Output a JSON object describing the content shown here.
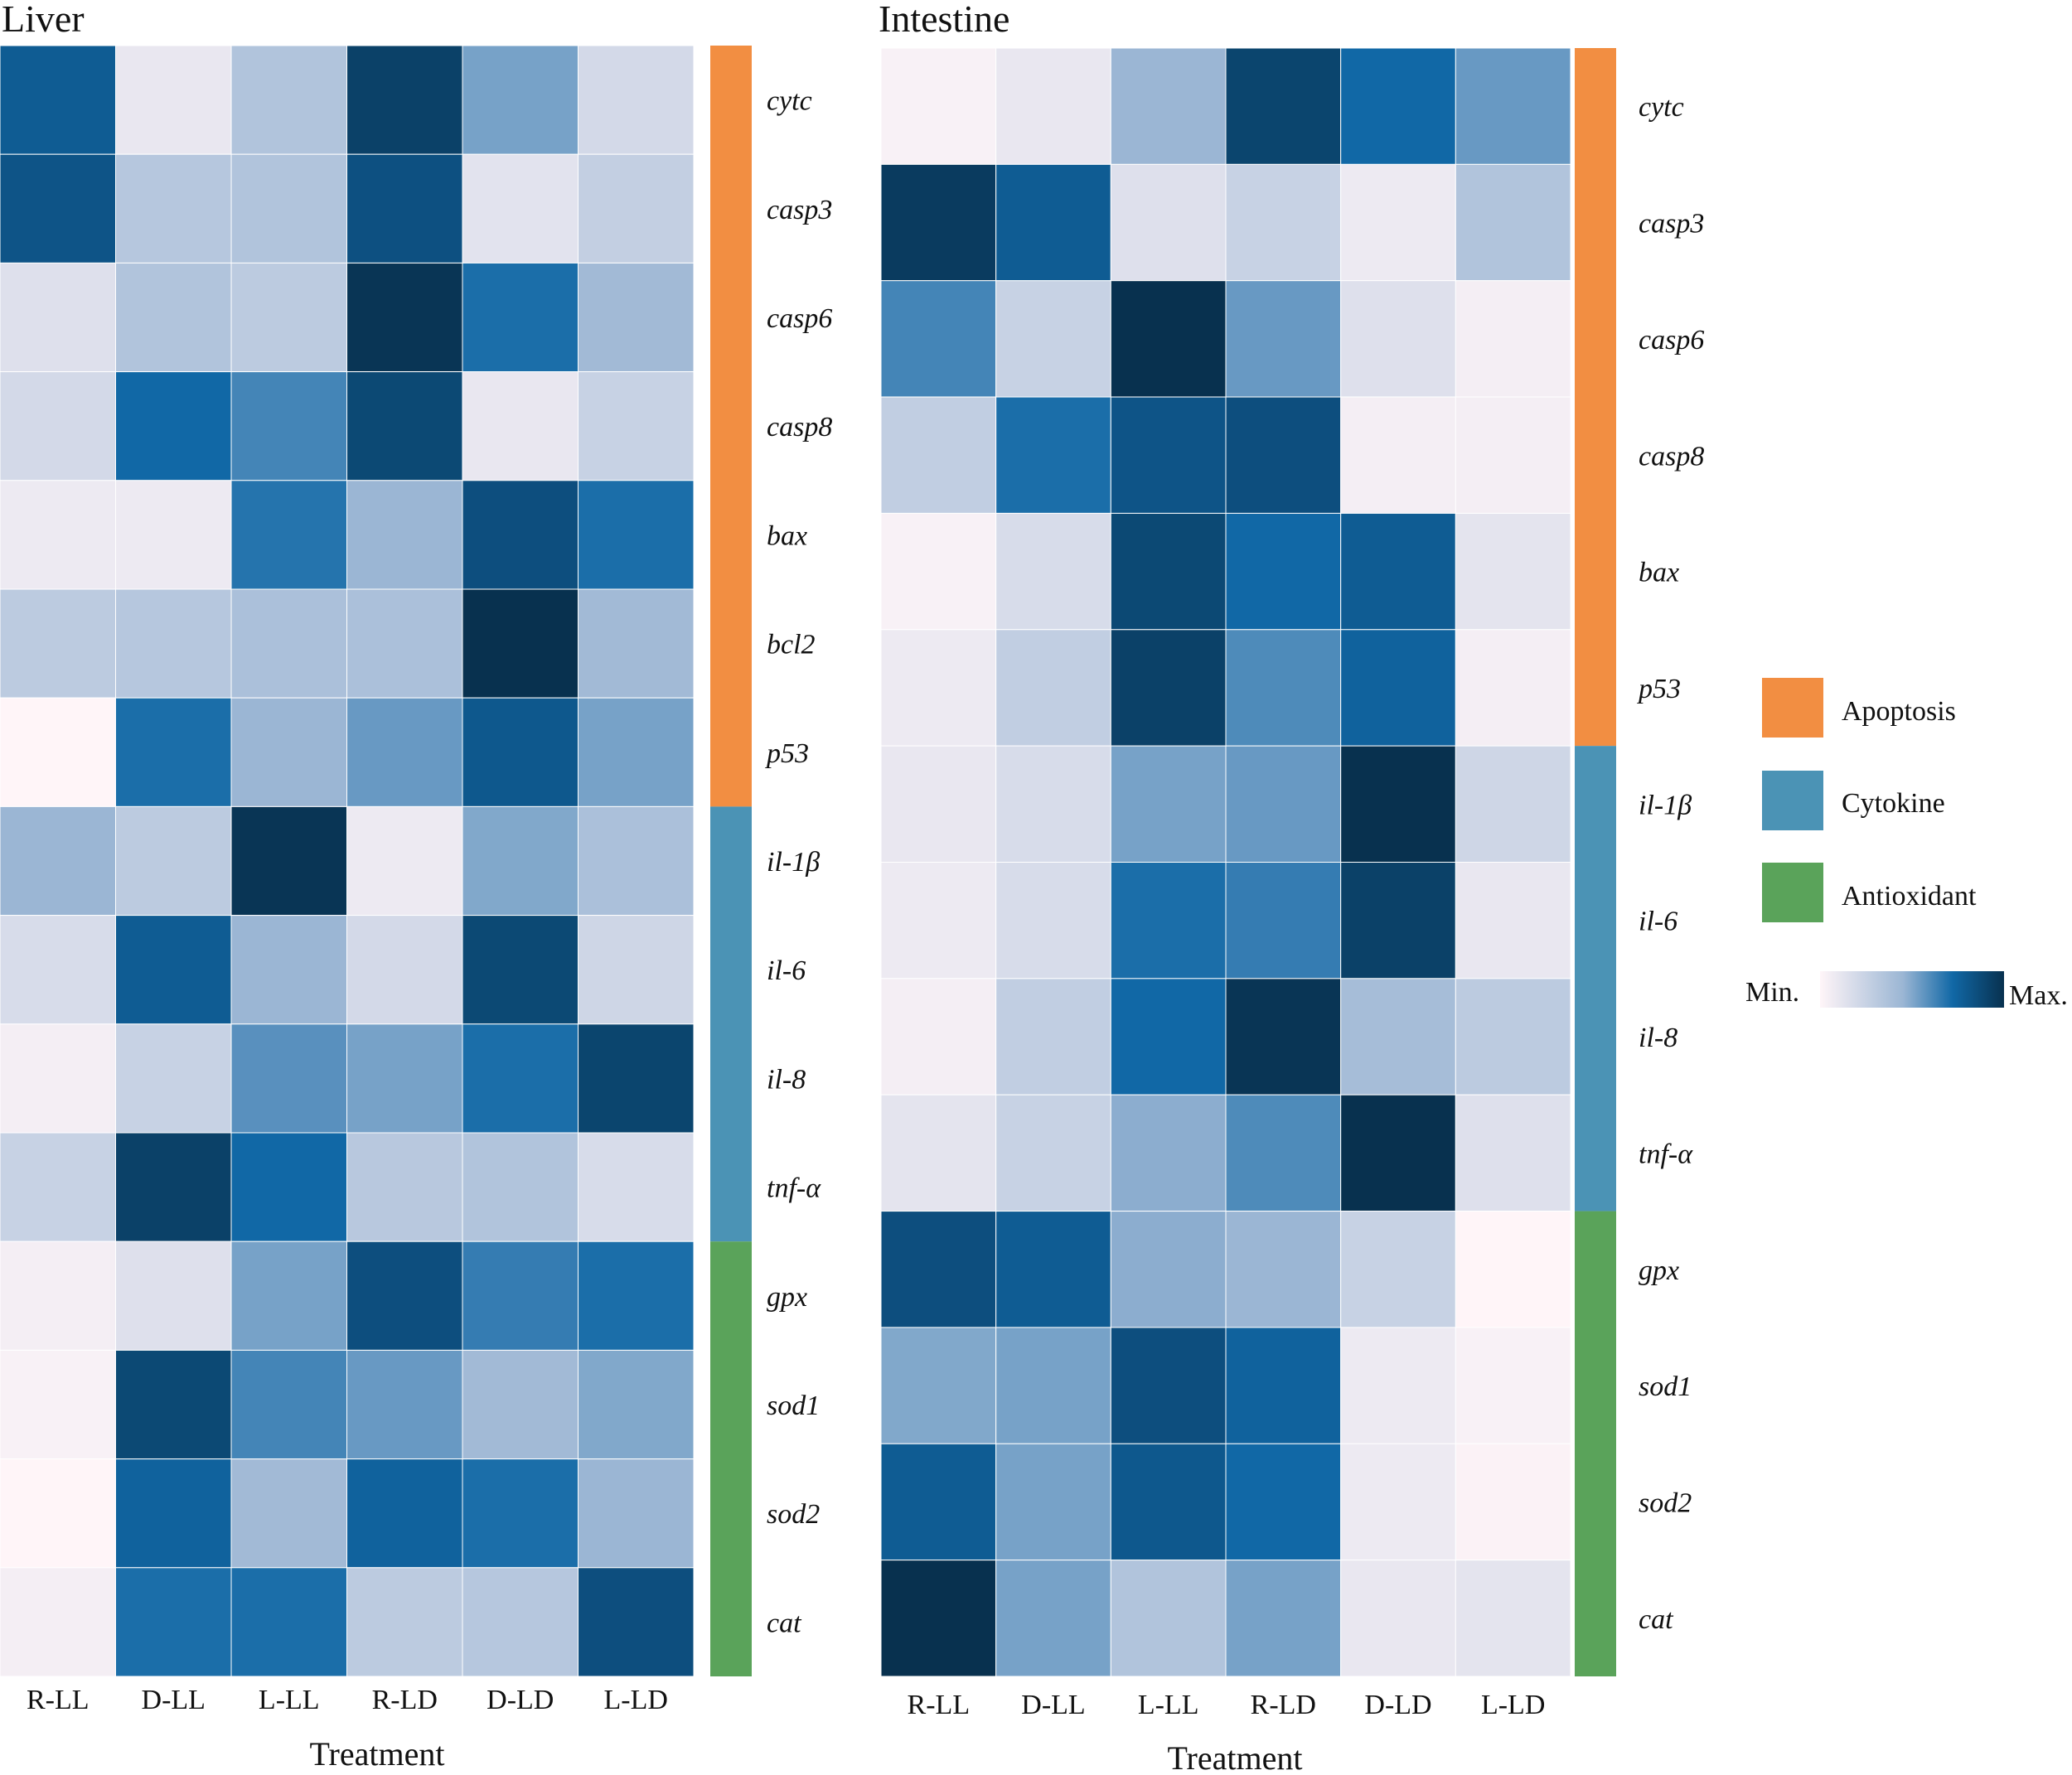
{
  "chart_data": [
    {
      "type": "heatmap",
      "title": "Liver",
      "xlabel": "Treatment",
      "ylabel": "",
      "columns": [
        "R-LL",
        "D-LL",
        "L-LL",
        "R-LD",
        "D-LD",
        "L-LD"
      ],
      "rows": [
        "cytc",
        "casp3",
        "casp6",
        "casp8",
        "bax",
        "bcl2",
        "p53",
        "il-1β",
        "il-6",
        "il-8",
        "tnf-α",
        "gpx",
        "sod1",
        "sod2",
        "cat"
      ],
      "row_groups": [
        "Apoptosis",
        "Apoptosis",
        "Apoptosis",
        "Apoptosis",
        "Apoptosis",
        "Apoptosis",
        "Apoptosis",
        "Cytokine",
        "Cytokine",
        "Cytokine",
        "Cytokine",
        "Antioxidant",
        "Antioxidant",
        "Antioxidant",
        "Antioxidant"
      ],
      "scale": "relative 0 (min) to 1 (max)",
      "values": [
        [
          0.78,
          0.1,
          0.35,
          0.92,
          0.52,
          0.2
        ],
        [
          0.82,
          0.33,
          0.35,
          0.84,
          0.13,
          0.27
        ],
        [
          0.15,
          0.35,
          0.3,
          0.98,
          0.7,
          0.42
        ],
        [
          0.2,
          0.72,
          0.62,
          0.88,
          0.1,
          0.25
        ],
        [
          0.08,
          0.08,
          0.68,
          0.45,
          0.85,
          0.7
        ],
        [
          0.3,
          0.33,
          0.38,
          0.38,
          1.0,
          0.42
        ],
        [
          0.0,
          0.7,
          0.45,
          0.55,
          0.8,
          0.52
        ],
        [
          0.45,
          0.3,
          0.98,
          0.08,
          0.5,
          0.38
        ],
        [
          0.18,
          0.78,
          0.45,
          0.2,
          0.88,
          0.22
        ],
        [
          0.05,
          0.25,
          0.58,
          0.52,
          0.7,
          0.9
        ],
        [
          0.25,
          0.92,
          0.72,
          0.32,
          0.35,
          0.18
        ],
        [
          0.05,
          0.15,
          0.52,
          0.85,
          0.65,
          0.7
        ],
        [
          0.03,
          0.88,
          0.62,
          0.55,
          0.42,
          0.5
        ],
        [
          0.0,
          0.75,
          0.42,
          0.75,
          0.7,
          0.45
        ],
        [
          0.05,
          0.7,
          0.7,
          0.3,
          0.33,
          0.85
        ]
      ]
    },
    {
      "type": "heatmap",
      "title": "Intestine",
      "xlabel": "Treatment",
      "ylabel": "",
      "columns": [
        "R-LL",
        "D-LL",
        "L-LL",
        "R-LD",
        "D-LD",
        "L-LD"
      ],
      "rows": [
        "cytc",
        "casp3",
        "casp6",
        "casp8",
        "bax",
        "p53",
        "il-1β",
        "il-6",
        "il-8",
        "tnf-α",
        "gpx",
        "sod1",
        "sod2",
        "cat"
      ],
      "row_groups": [
        "Apoptosis",
        "Apoptosis",
        "Apoptosis",
        "Apoptosis",
        "Apoptosis",
        "Apoptosis",
        "Cytokine",
        "Cytokine",
        "Cytokine",
        "Cytokine",
        "Antioxidant",
        "Antioxidant",
        "Antioxidant",
        "Antioxidant"
      ],
      "scale": "relative 0 (min) to 1 (max)",
      "values": [
        [
          0.03,
          0.1,
          0.45,
          0.9,
          0.72,
          0.55
        ],
        [
          0.95,
          0.78,
          0.15,
          0.25,
          0.08,
          0.35
        ],
        [
          0.62,
          0.25,
          1.0,
          0.55,
          0.15,
          0.05
        ],
        [
          0.28,
          0.7,
          0.82,
          0.85,
          0.05,
          0.05
        ],
        [
          0.03,
          0.18,
          0.88,
          0.72,
          0.78,
          0.12
        ],
        [
          0.08,
          0.28,
          0.92,
          0.6,
          0.75,
          0.05
        ],
        [
          0.1,
          0.18,
          0.52,
          0.55,
          1.0,
          0.22
        ],
        [
          0.08,
          0.18,
          0.7,
          0.65,
          0.92,
          0.1
        ],
        [
          0.05,
          0.28,
          0.72,
          0.98,
          0.4,
          0.3
        ],
        [
          0.12,
          0.25,
          0.48,
          0.6,
          1.0,
          0.15
        ],
        [
          0.85,
          0.78,
          0.48,
          0.45,
          0.25,
          0.0
        ],
        [
          0.5,
          0.52,
          0.85,
          0.75,
          0.08,
          0.03
        ],
        [
          0.78,
          0.52,
          0.8,
          0.72,
          0.08,
          0.02
        ],
        [
          1.0,
          0.52,
          0.35,
          0.52,
          0.1,
          0.12
        ]
      ]
    }
  ],
  "legend": {
    "entries": [
      {
        "label": "Apoptosis",
        "color": "#f28e42"
      },
      {
        "label": "Cytokine",
        "color": "#4b93b5"
      },
      {
        "label": "Antioxidant",
        "color": "#5aa35a"
      }
    ],
    "colorbar": {
      "min_label": "Min.",
      "max_label": "Max."
    }
  },
  "colors": {
    "scale": [
      "#fff5f8",
      "#9bb6d4",
      "#1168a6",
      "#08314f"
    ],
    "group": {
      "Apoptosis": "#f28e42",
      "Cytokine": "#4b93b5",
      "Antioxidant": "#5aa35a"
    }
  }
}
